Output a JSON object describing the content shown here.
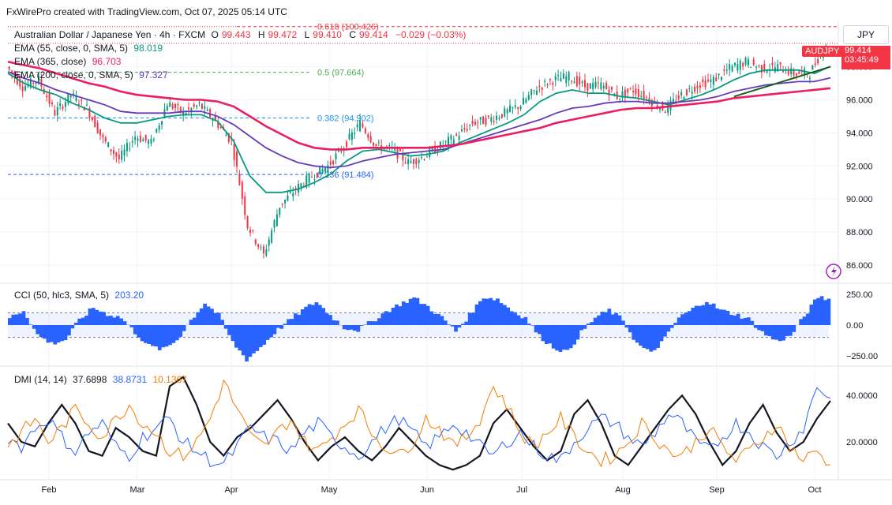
{
  "header": {
    "credit": "FxWirePro created with TradingView.com, Oct 07, 2025 05:14 UTC",
    "symbol_line_name": "Australian Dollar / Japanese Yen · 4h · FXCM",
    "ohlc": {
      "o_label": "O",
      "o": "99.443",
      "h_label": "H",
      "h": "99.472",
      "l_label": "L",
      "l": "99.410",
      "c_label": "C",
      "c": "99.414",
      "chg": "−0.029 (−0.03%)"
    }
  },
  "currency_button": "JPY",
  "symbol_tag": "AUDJPY",
  "last_price": {
    "value": "99.414",
    "countdown": "03:45:49",
    "color": "#f23645"
  },
  "legends": {
    "ema55": {
      "label": "EMA (55, close, 0, SMA, 5)",
      "value": "98.019",
      "color": "#089981"
    },
    "ema365": {
      "label": "EMA (365, close)",
      "value": "96.703",
      "color": "#e91e63"
    },
    "ema200": {
      "label": "EMA (200, close, 0, SMA, 5)",
      "value": "97.327",
      "color": "#673ab7"
    },
    "cci": {
      "label": "CCI (50, hlc3, SMA, 5)",
      "value": "203.20",
      "color": "#2962ff"
    },
    "dmi": {
      "label": "DMI (14, 14)",
      "adx": "37.6898",
      "plus_di": "38.8731",
      "minus_di": "10.1367",
      "adx_color": "#131722",
      "plus_color": "#2962ff",
      "minus_color": "#f57c00"
    }
  },
  "fib_levels": [
    {
      "label": "0.618 (100.426)",
      "price": 100.426,
      "color": "#f23645"
    },
    {
      "label": "0.5 (97.664)",
      "price": 97.664,
      "color": "#4caf50"
    },
    {
      "label": "0.382 (94.902)",
      "price": 94.902,
      "color": "#2196f3"
    },
    {
      "label": "0.236 (91.484)",
      "price": 91.484,
      "color": "#2962ff"
    }
  ],
  "chart_data": [
    {
      "type": "line",
      "name": "price",
      "x_axis_labels": [
        "Feb",
        "Mar",
        "Apr",
        "May",
        "Jun",
        "Jul",
        "Aug",
        "Sep",
        "Oct"
      ],
      "y_ticks": [
        "86.000",
        "88.000",
        "90.000",
        "92.000",
        "94.000",
        "96.000",
        "98.000"
      ],
      "y_range": [
        85.0,
        100.7
      ],
      "close": [
        98.0,
        96.8,
        97.2,
        95.2,
        96.3,
        95.5,
        93.6,
        92.4,
        93.8,
        93.4,
        95.8,
        95.2,
        95.7,
        94.7,
        93.5,
        88.4,
        86.6,
        89.6,
        90.6,
        91.4,
        92.0,
        93.2,
        94.6,
        93.2,
        93.0,
        92.2,
        92.6,
        93.2,
        93.8,
        94.6,
        94.8,
        95.2,
        95.7,
        96.7,
        97.2,
        97.4,
        96.8,
        96.9,
        96.2,
        96.6,
        96.0,
        95.4,
        96.3,
        96.9,
        97.2,
        97.9,
        98.3,
        97.9,
        98.0,
        97.6,
        97.6,
        99.414
      ],
      "series": [
        {
          "name": "EMA 55",
          "color": "#089981",
          "values": [
            97.6,
            97.0,
            96.6,
            96.3,
            95.8,
            95.4,
            94.9,
            94.6,
            94.6,
            94.8,
            95.0,
            95.1,
            95.1,
            94.7,
            93.5,
            91.4,
            90.4,
            90.4,
            90.6,
            91.0,
            91.5,
            92.3,
            92.9,
            93.0,
            92.8,
            92.6,
            92.7,
            92.9,
            93.4,
            93.8,
            94.2,
            94.6,
            95.1,
            95.9,
            96.4,
            96.6,
            96.4,
            96.4,
            96.2,
            96.1,
            95.9,
            95.7,
            96.0,
            96.3,
            96.7,
            97.2,
            97.6,
            97.8,
            97.8,
            97.8,
            97.6,
            98.02
          ]
        },
        {
          "name": "EMA 200",
          "color": "#673ab7",
          "values": [
            97.7,
            97.3,
            97.0,
            96.6,
            96.3,
            96.0,
            95.7,
            95.3,
            95.2,
            95.2,
            95.2,
            95.3,
            95.3,
            95.0,
            94.5,
            93.8,
            93.1,
            92.6,
            92.2,
            92.0,
            91.9,
            92.0,
            92.3,
            92.5,
            92.7,
            92.8,
            92.9,
            93.0,
            93.3,
            93.6,
            93.9,
            94.2,
            94.5,
            94.8,
            95.2,
            95.5,
            95.6,
            95.8,
            95.9,
            95.9,
            95.8,
            95.8,
            95.9,
            96.0,
            96.2,
            96.5,
            96.7,
            96.9,
            97.0,
            97.1,
            97.1,
            97.33
          ]
        },
        {
          "name": "EMA 365",
          "color": "#e91e63",
          "values": [
            98.3,
            98.1,
            97.9,
            97.6,
            97.3,
            97.0,
            96.8,
            96.5,
            96.3,
            96.2,
            96.1,
            96.0,
            96.0,
            95.9,
            95.6,
            95.0,
            94.4,
            93.9,
            93.4,
            93.1,
            93.0,
            93.0,
            93.1,
            93.1,
            93.1,
            93.1,
            93.1,
            93.2,
            93.3,
            93.5,
            93.7,
            93.9,
            94.1,
            94.3,
            94.6,
            94.8,
            95.0,
            95.2,
            95.4,
            95.5,
            95.5,
            95.6,
            95.7,
            95.8,
            95.9,
            96.1,
            96.2,
            96.3,
            96.4,
            96.5,
            96.6,
            96.7
          ]
        }
      ]
    },
    {
      "type": "bar",
      "name": "CCI",
      "y_ticks": [
        "250.00",
        "0.00",
        "−250.00"
      ],
      "y_range": [
        -320,
        320
      ],
      "band": [
        100,
        -100
      ],
      "values": [
        60,
        120,
        -80,
        -150,
        -120,
        40,
        140,
        90,
        60,
        -60,
        -170,
        -200,
        -120,
        40,
        180,
        80,
        -140,
        -280,
        -180,
        -60,
        30,
        120,
        190,
        80,
        -20,
        -40,
        30,
        110,
        170,
        220,
        150,
        60,
        -50,
        80,
        230,
        210,
        120,
        60,
        -90,
        -180,
        -220,
        -60,
        60,
        120,
        40,
        -150,
        -230,
        -110,
        60,
        130,
        200,
        120,
        90,
        50,
        -60,
        -130,
        -90,
        70,
        230,
        203
      ]
    },
    {
      "type": "line",
      "name": "DMI",
      "y_ticks": [
        "40.0000",
        "20.0000"
      ],
      "y_range": [
        5,
        52
      ],
      "series": [
        {
          "name": "ADX",
          "color": "#131722",
          "values": [
            28,
            20,
            18,
            28,
            36,
            28,
            16,
            14,
            26,
            22,
            16,
            14,
            44,
            48,
            36,
            20,
            14,
            22,
            26,
            32,
            38,
            30,
            20,
            12,
            18,
            22,
            16,
            12,
            18,
            26,
            20,
            14,
            10,
            8,
            10,
            14,
            28,
            34,
            26,
            18,
            12,
            16,
            32,
            38,
            28,
            14,
            10,
            18,
            26,
            34,
            40,
            32,
            20,
            10,
            16,
            28,
            36,
            24,
            16,
            20,
            30,
            37.69
          ]
        },
        {
          "name": "+DI",
          "color": "#2962ff",
          "values": [
            22,
            18,
            26,
            30,
            22,
            16,
            24,
            28,
            18,
            14,
            22,
            26,
            30,
            20,
            16,
            12,
            10,
            18,
            26,
            22,
            20,
            16,
            24,
            28,
            22,
            18,
            14,
            20,
            26,
            30,
            24,
            18,
            22,
            28,
            24,
            18,
            14,
            20,
            24,
            18,
            14,
            12,
            20,
            26,
            30,
            28,
            22,
            18,
            24,
            32,
            28,
            20,
            16,
            22,
            28,
            24,
            18,
            14,
            20,
            26,
            44,
            38.87
          ]
        },
        {
          "name": "−DI",
          "color": "#f57c00",
          "values": [
            18,
            24,
            30,
            20,
            26,
            34,
            28,
            22,
            30,
            36,
            28,
            24,
            16,
            14,
            20,
            30,
            46,
            34,
            22,
            18,
            24,
            30,
            20,
            16,
            22,
            28,
            34,
            24,
            18,
            14,
            20,
            30,
            26,
            18,
            22,
            30,
            44,
            36,
            24,
            18,
            24,
            30,
            22,
            16,
            12,
            14,
            20,
            28,
            22,
            16,
            14,
            20,
            26,
            18,
            12,
            16,
            22,
            28,
            18,
            12,
            16,
            10.14
          ]
        }
      ]
    }
  ]
}
